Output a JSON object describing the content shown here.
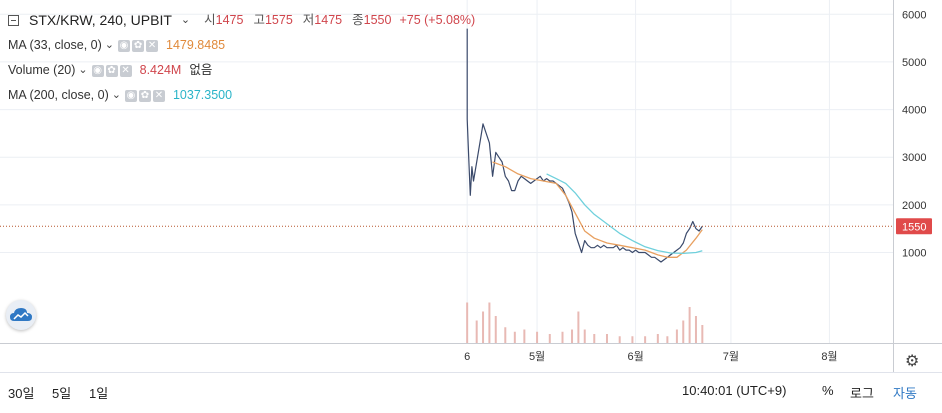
{
  "legend": {
    "symbol": "STX/KRW, 240, UPBIT",
    "ohlc": [
      {
        "label": "시",
        "value": "1475"
      },
      {
        "label": "고",
        "value": "1575"
      },
      {
        "label": "저",
        "value": "1475"
      },
      {
        "label": "종",
        "value": "1550"
      }
    ],
    "change": "+75 (+5.08%)",
    "indicators": [
      {
        "name": "MA (33, close, 0)",
        "value": "1479.8485",
        "color": "#e08a3b"
      },
      {
        "name": "Volume (20)",
        "value": "8.424M",
        "extra": "없음",
        "color": "#d0454c"
      },
      {
        "name": "MA (200, close, 0)",
        "value": "1037.3500",
        "color": "#2ab4c8"
      }
    ]
  },
  "chart_data": {
    "type": "line",
    "title": "STX/KRW, 240, UPBIT",
    "y_ticks": [
      "6000",
      "5000",
      "4000",
      "3000",
      "2000",
      "1000"
    ],
    "ylim": [
      -900,
      6300
    ],
    "x_ticks": [
      {
        "label": "6",
        "day": 0
      },
      {
        "label": "5월",
        "day": 22
      },
      {
        "label": "6월",
        "day": 53
      },
      {
        "label": "7월",
        "day": 83
      },
      {
        "label": "8월",
        "day": 114
      }
    ],
    "x_unit": "days",
    "xlim": [
      -147,
      134
    ],
    "last_price": 1550,
    "last_price_label": "1550",
    "grid": true,
    "series": [
      {
        "role": "price",
        "color": "#3b4a6b",
        "points": [
          [
            0,
            5700
          ],
          [
            0,
            3800
          ],
          [
            0.5,
            3000
          ],
          [
            1,
            2200
          ],
          [
            1.5,
            2800
          ],
          [
            2,
            2500
          ],
          [
            3,
            2900
          ],
          [
            4,
            3300
          ],
          [
            5,
            3700
          ],
          [
            6,
            3500
          ],
          [
            7,
            3300
          ],
          [
            8,
            2600
          ],
          [
            9,
            3100
          ],
          [
            10,
            3000
          ],
          [
            11,
            2900
          ],
          [
            12,
            2600
          ],
          [
            13,
            2500
          ],
          [
            14,
            2300
          ],
          [
            15,
            2300
          ],
          [
            16,
            2500
          ],
          [
            17,
            2600
          ],
          [
            18,
            2550
          ],
          [
            19,
            2500
          ],
          [
            20,
            2450
          ],
          [
            21,
            2500
          ],
          [
            22,
            2550
          ],
          [
            23,
            2600
          ],
          [
            24,
            2500
          ],
          [
            25,
            2550
          ],
          [
            26,
            2500
          ],
          [
            27,
            2500
          ],
          [
            28,
            2450
          ],
          [
            29,
            2400
          ],
          [
            30,
            2350
          ],
          [
            31,
            2200
          ],
          [
            32,
            2050
          ],
          [
            33,
            1850
          ],
          [
            34,
            1400
          ],
          [
            35,
            1200
          ],
          [
            36,
            1000
          ],
          [
            37,
            1250
          ],
          [
            38,
            1150
          ],
          [
            39,
            1100
          ],
          [
            40,
            1100
          ],
          [
            41,
            1150
          ],
          [
            42,
            1100
          ],
          [
            43,
            1150
          ],
          [
            44,
            1100
          ],
          [
            45,
            1100
          ],
          [
            46,
            1100
          ],
          [
            47,
            1150
          ],
          [
            48,
            1050
          ],
          [
            49,
            1100
          ],
          [
            50,
            1050
          ],
          [
            51,
            1050
          ],
          [
            52,
            1000
          ],
          [
            53,
            1050
          ],
          [
            54,
            1000
          ],
          [
            55,
            1000
          ],
          [
            56,
            1000
          ],
          [
            57,
            950
          ],
          [
            58,
            900
          ],
          [
            59,
            900
          ],
          [
            60,
            850
          ],
          [
            61,
            800
          ],
          [
            62,
            850
          ],
          [
            63,
            900
          ],
          [
            64,
            950
          ],
          [
            65,
            1000
          ],
          [
            66,
            1050
          ],
          [
            67,
            1100
          ],
          [
            68,
            1200
          ],
          [
            69,
            1400
          ],
          [
            70,
            1500
          ],
          [
            71,
            1650
          ],
          [
            72,
            1500
          ],
          [
            73,
            1450
          ],
          [
            74,
            1550
          ]
        ]
      },
      {
        "name": "MA (33, close, 0)",
        "color": "#e8a060",
        "points": [
          [
            8,
            2900
          ],
          [
            12,
            2800
          ],
          [
            16,
            2650
          ],
          [
            20,
            2550
          ],
          [
            24,
            2500
          ],
          [
            28,
            2450
          ],
          [
            31,
            2200
          ],
          [
            33,
            1950
          ],
          [
            35,
            1700
          ],
          [
            37,
            1450
          ],
          [
            40,
            1300
          ],
          [
            44,
            1200
          ],
          [
            48,
            1150
          ],
          [
            52,
            1100
          ],
          [
            56,
            1050
          ],
          [
            60,
            950
          ],
          [
            63,
            900
          ],
          [
            66,
            900
          ],
          [
            69,
            1050
          ],
          [
            72,
            1300
          ],
          [
            74,
            1480
          ]
        ]
      },
      {
        "name": "MA (200, close, 0)",
        "color": "#6fd0dc",
        "points": [
          [
            25,
            2650
          ],
          [
            28,
            2550
          ],
          [
            31,
            2450
          ],
          [
            34,
            2250
          ],
          [
            37,
            2000
          ],
          [
            40,
            1800
          ],
          [
            44,
            1600
          ],
          [
            48,
            1400
          ],
          [
            52,
            1250
          ],
          [
            56,
            1120
          ],
          [
            60,
            1040
          ],
          [
            64,
            990
          ],
          [
            68,
            980
          ],
          [
            72,
            1000
          ],
          [
            74,
            1037
          ]
        ]
      }
    ],
    "volume": {
      "color": "#e8b9b4",
      "bars": [
        [
          0,
          0.9
        ],
        [
          3,
          0.5
        ],
        [
          5,
          0.7
        ],
        [
          7,
          0.9
        ],
        [
          9,
          0.6
        ],
        [
          12,
          0.35
        ],
        [
          15,
          0.25
        ],
        [
          18,
          0.3
        ],
        [
          22,
          0.25
        ],
        [
          26,
          0.2
        ],
        [
          30,
          0.25
        ],
        [
          33,
          0.3
        ],
        [
          35,
          0.7
        ],
        [
          37,
          0.3
        ],
        [
          40,
          0.2
        ],
        [
          44,
          0.2
        ],
        [
          48,
          0.15
        ],
        [
          52,
          0.15
        ],
        [
          56,
          0.15
        ],
        [
          60,
          0.2
        ],
        [
          63,
          0.15
        ],
        [
          66,
          0.3
        ],
        [
          68,
          0.5
        ],
        [
          70,
          0.8
        ],
        [
          72,
          0.6
        ],
        [
          74,
          0.4
        ]
      ]
    }
  },
  "bottom": {
    "timeframes": [
      "30일",
      "5일",
      "1일"
    ],
    "time": "10:40:01 (UTC+9)",
    "percent": "%",
    "log": "로그",
    "auto": "자동"
  }
}
